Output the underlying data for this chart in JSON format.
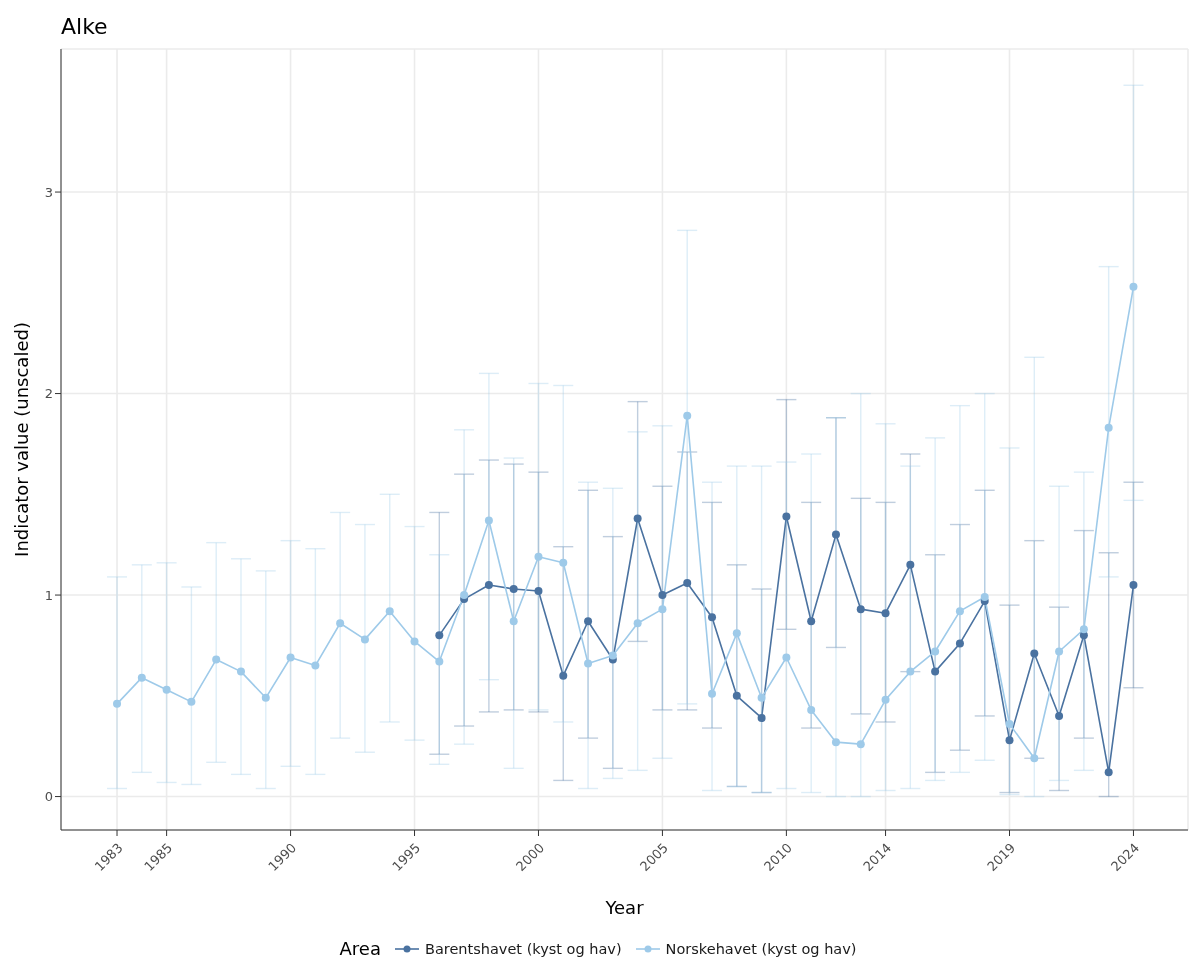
{
  "chart_data": {
    "type": "line",
    "title": "Alke",
    "xlabel": "Year",
    "ylabel": "Indicator value (unscaled)",
    "legend_title": "Area",
    "x": [
      1983,
      1984,
      1985,
      1986,
      1987,
      1988,
      1989,
      1990,
      1991,
      1992,
      1993,
      1994,
      1995,
      1996,
      1997,
      1998,
      1999,
      2000,
      2001,
      2002,
      2003,
      2004,
      2005,
      2006,
      2007,
      2008,
      2009,
      2010,
      2011,
      2012,
      2013,
      2014,
      2015,
      2016,
      2017,
      2018,
      2019,
      2020,
      2021,
      2022,
      2023,
      2024
    ],
    "series": [
      {
        "name": "Barentshavet (kyst og hav)",
        "color": "#4a72a0",
        "values": [
          null,
          null,
          null,
          null,
          null,
          null,
          null,
          null,
          null,
          null,
          null,
          null,
          null,
          0.8,
          0.98,
          1.05,
          1.03,
          1.02,
          0.6,
          0.87,
          0.68,
          1.38,
          1.0,
          1.06,
          0.89,
          0.5,
          0.39,
          1.39,
          0.87,
          1.3,
          0.93,
          0.91,
          1.15,
          0.62,
          0.76,
          0.97,
          0.28,
          0.71,
          0.4,
          0.8,
          0.12,
          1.05
        ],
        "errors": [
          null,
          null,
          null,
          null,
          null,
          null,
          null,
          null,
          null,
          null,
          null,
          null,
          null,
          [
            0.21,
            1.41
          ],
          [
            0.35,
            1.6
          ],
          [
            0.42,
            1.67
          ],
          [
            0.43,
            1.65
          ],
          [
            0.42,
            1.61
          ],
          [
            0.08,
            1.24
          ],
          [
            0.29,
            1.52
          ],
          [
            0.14,
            1.29
          ],
          [
            0.77,
            1.96
          ],
          [
            0.43,
            1.54
          ],
          [
            0.43,
            1.71
          ],
          [
            0.34,
            1.46
          ],
          [
            0.05,
            1.15
          ],
          [
            0.02,
            1.03
          ],
          [
            0.83,
            1.97
          ],
          [
            0.34,
            1.46
          ],
          [
            0.74,
            1.88
          ],
          [
            0.41,
            1.48
          ],
          [
            0.37,
            1.46
          ],
          [
            0.62,
            1.7
          ],
          [
            0.12,
            1.2
          ],
          [
            0.23,
            1.35
          ],
          [
            0.4,
            1.52
          ],
          [
            0.02,
            0.95
          ],
          [
            0.19,
            1.27
          ],
          [
            0.03,
            0.94
          ],
          [
            0.29,
            1.32
          ],
          [
            0.0,
            1.21
          ],
          [
            0.54,
            1.56
          ]
        ]
      },
      {
        "name": "Norskehavet (kyst og hav)",
        "color": "#9ecae9",
        "values": [
          0.46,
          0.59,
          0.53,
          0.47,
          0.68,
          0.62,
          0.49,
          0.69,
          0.65,
          0.86,
          0.78,
          0.92,
          0.77,
          0.67,
          1.0,
          1.37,
          0.87,
          1.19,
          1.16,
          0.66,
          0.7,
          0.86,
          0.93,
          1.89,
          0.51,
          0.81,
          0.49,
          0.69,
          0.43,
          0.27,
          0.26,
          0.48,
          0.62,
          0.72,
          0.92,
          0.99,
          0.36,
          0.19,
          0.72,
          0.83,
          1.83,
          2.53
        ],
        "errors": [
          [
            0.04,
            1.09
          ],
          [
            0.12,
            1.15
          ],
          [
            0.07,
            1.16
          ],
          [
            0.06,
            1.04
          ],
          [
            0.17,
            1.26
          ],
          [
            0.11,
            1.18
          ],
          [
            0.04,
            1.12
          ],
          [
            0.15,
            1.27
          ],
          [
            0.11,
            1.23
          ],
          [
            0.29,
            1.41
          ],
          [
            0.22,
            1.35
          ],
          [
            0.37,
            1.5
          ],
          [
            0.28,
            1.34
          ],
          [
            0.16,
            1.2
          ],
          [
            0.26,
            1.82
          ],
          [
            0.58,
            2.1
          ],
          [
            0.14,
            1.68
          ],
          [
            0.43,
            2.05
          ],
          [
            0.37,
            2.04
          ],
          [
            0.04,
            1.56
          ],
          [
            0.09,
            1.53
          ],
          [
            0.13,
            1.81
          ],
          [
            0.19,
            1.84
          ],
          [
            0.46,
            2.81
          ],
          [
            0.03,
            1.56
          ],
          [
            0.05,
            1.64
          ],
          [
            0.02,
            1.64
          ],
          [
            0.04,
            1.66
          ],
          [
            0.02,
            1.7
          ],
          [
            0.0,
            1.88
          ],
          [
            0.0,
            2.0
          ],
          [
            0.03,
            1.85
          ],
          [
            0.04,
            1.64
          ],
          [
            0.08,
            1.78
          ],
          [
            0.12,
            1.94
          ],
          [
            0.18,
            2.0
          ],
          [
            0.01,
            1.73
          ],
          [
            0.0,
            2.18
          ],
          [
            0.08,
            1.54
          ],
          [
            0.13,
            1.61
          ],
          [
            1.09,
            2.63
          ],
          [
            1.47,
            3.53
          ]
        ]
      }
    ],
    "xlim": [
      1980.74,
      2026.2
    ],
    "xticks": [
      1983,
      1985,
      1990,
      1995,
      2000,
      2005,
      2010,
      2014,
      2019,
      2024
    ],
    "ylim": [
      -0.166,
      3.71
    ],
    "yticks": [
      0,
      1,
      2,
      3
    ],
    "grid": true,
    "legend": "bottom",
    "marker": "circle",
    "line_style": "solid"
  }
}
